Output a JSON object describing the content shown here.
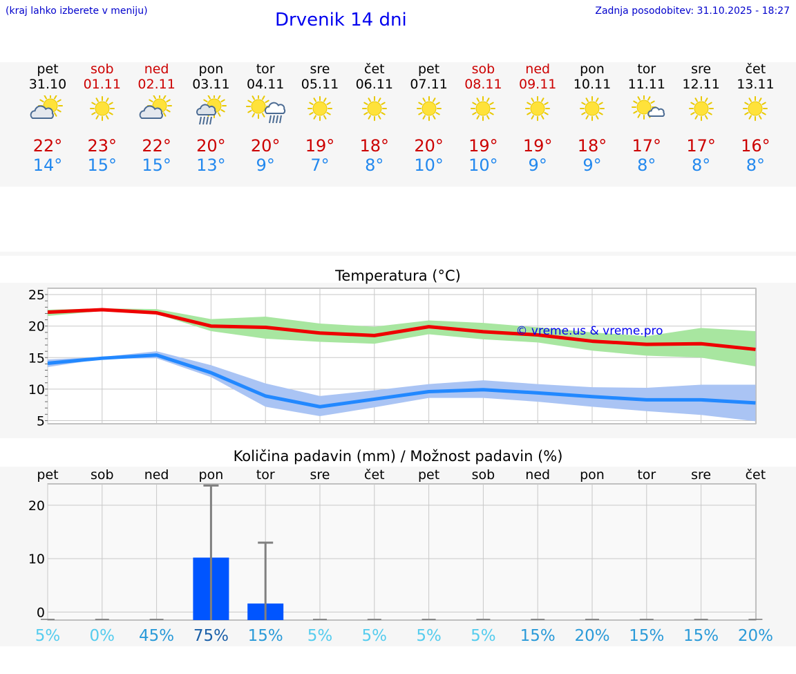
{
  "header": {
    "hint": "(kraj lahko izberete v meniju)",
    "title": "Drvenik 14 dni",
    "updated": "Zadnja posodobitev: 31.10.2025 - 18:27"
  },
  "days": [
    {
      "dow": "pet",
      "date": "31.10",
      "weekend": false,
      "icon": "sun-cloud-icon",
      "tmax": "22°",
      "tmin": "14°"
    },
    {
      "dow": "sob",
      "date": "01.11",
      "weekend": true,
      "icon": "sun-icon",
      "tmax": "23°",
      "tmin": "15°"
    },
    {
      "dow": "ned",
      "date": "02.11",
      "weekend": true,
      "icon": "sun-cloud-icon",
      "tmax": "22°",
      "tmin": "15°"
    },
    {
      "dow": "pon",
      "date": "03.11",
      "weekend": false,
      "icon": "sun-rain-icon",
      "tmax": "20°",
      "tmin": "13°"
    },
    {
      "dow": "tor",
      "date": "04.11",
      "weekend": false,
      "icon": "sun-cloud-rain-icon",
      "tmax": "20°",
      "tmin": "9°"
    },
    {
      "dow": "sre",
      "date": "05.11",
      "weekend": false,
      "icon": "sun-icon",
      "tmax": "19°",
      "tmin": "7°"
    },
    {
      "dow": "čet",
      "date": "06.11",
      "weekend": false,
      "icon": "sun-icon",
      "tmax": "18°",
      "tmin": "8°"
    },
    {
      "dow": "pet",
      "date": "07.11",
      "weekend": false,
      "icon": "sun-icon",
      "tmax": "20°",
      "tmin": "10°"
    },
    {
      "dow": "sob",
      "date": "08.11",
      "weekend": true,
      "icon": "sun-icon",
      "tmax": "19°",
      "tmin": "10°"
    },
    {
      "dow": "ned",
      "date": "09.11",
      "weekend": true,
      "icon": "sun-icon",
      "tmax": "19°",
      "tmin": "9°"
    },
    {
      "dow": "pon",
      "date": "10.11",
      "weekend": false,
      "icon": "sun-icon",
      "tmax": "18°",
      "tmin": "9°"
    },
    {
      "dow": "tor",
      "date": "11.11",
      "weekend": false,
      "icon": "sun-small-cloud-icon",
      "tmax": "17°",
      "tmin": "8°"
    },
    {
      "dow": "sre",
      "date": "12.11",
      "weekend": false,
      "icon": "sun-icon",
      "tmax": "17°",
      "tmin": "8°"
    },
    {
      "dow": "čet",
      "date": "13.11",
      "weekend": false,
      "icon": "sun-icon",
      "tmax": "16°",
      "tmin": "8°"
    }
  ],
  "colors": {
    "max_line": "#ee0000",
    "min_line": "#2288ff",
    "max_band": "#a8e6a0",
    "min_band": "#aac4f4",
    "bar": "#0055ff",
    "whisker": "#808080",
    "watermark": "#0000ee"
  },
  "chart_data": [
    {
      "type": "line",
      "title": "Temperatura (°C)",
      "ylim": [
        4.5,
        26
      ],
      "yticks": [
        5,
        10,
        15,
        20,
        25
      ],
      "ytick_labels": [
        "5",
        "10",
        "15",
        "20",
        "25"
      ],
      "watermark": "© vreme.us & vreme.pro",
      "x": [
        0,
        1,
        2,
        3,
        4,
        5,
        6,
        7,
        8,
        9,
        10,
        11,
        12,
        13
      ],
      "series": [
        {
          "name": "max",
          "values": [
            22.2,
            22.6,
            22.1,
            20.0,
            19.8,
            18.9,
            18.5,
            19.9,
            19.1,
            18.6,
            17.6,
            17.1,
            17.2,
            16.3
          ],
          "band_low": [
            21.6,
            22.4,
            21.9,
            19.2,
            18.0,
            17.5,
            17.2,
            18.7,
            17.9,
            17.4,
            16.1,
            15.3,
            15.0,
            13.6
          ],
          "band_high": [
            22.6,
            22.8,
            22.7,
            21.1,
            21.5,
            20.4,
            19.9,
            20.9,
            20.5,
            19.8,
            19.0,
            18.4,
            19.7,
            19.2
          ]
        },
        {
          "name": "min",
          "values": [
            14.1,
            14.9,
            15.4,
            12.6,
            8.9,
            7.2,
            8.4,
            9.6,
            9.9,
            9.4,
            8.8,
            8.3,
            8.3,
            7.8
          ],
          "band_low": [
            13.5,
            14.8,
            14.9,
            11.9,
            7.2,
            5.7,
            7.1,
            8.6,
            8.6,
            8.0,
            7.2,
            6.5,
            5.9,
            4.9
          ],
          "band_high": [
            14.7,
            15.1,
            16.0,
            13.8,
            10.9,
            8.9,
            9.8,
            10.8,
            11.4,
            10.8,
            10.3,
            10.2,
            10.7,
            10.7
          ]
        }
      ]
    },
    {
      "type": "bar",
      "title": "Količina padavin (mm) / Možnost padavin (%)",
      "categories": [
        "pet",
        "sob",
        "ned",
        "pon",
        "tor",
        "sre",
        "čet",
        "pet",
        "sob",
        "ned",
        "pon",
        "tor",
        "sre",
        "čet"
      ],
      "ylim": [
        -1.5,
        24
      ],
      "yticks": [
        0,
        10,
        20
      ],
      "ytick_labels": [
        "0",
        "10",
        "20"
      ],
      "values": [
        0,
        0,
        0,
        10.2,
        1.6,
        0,
        0,
        0,
        0,
        0,
        0,
        0,
        0,
        0
      ],
      "whisker_high": [
        0,
        0,
        0,
        23.7,
        13.0,
        0,
        0,
        0,
        0,
        0,
        0,
        0,
        0,
        0
      ],
      "probability_labels": [
        "5%",
        "0%",
        "45%",
        "75%",
        "15%",
        "5%",
        "5%",
        "5%",
        "5%",
        "15%",
        "20%",
        "15%",
        "15%",
        "20%"
      ],
      "probability_colors": [
        "#55ccee",
        "#55ccee",
        "#2a9ad8",
        "#1a5fa8",
        "#2a9ad8",
        "#55ccee",
        "#55ccee",
        "#55ccee",
        "#55ccee",
        "#2a9ad8",
        "#2a9ad8",
        "#2a9ad8",
        "#2a9ad8",
        "#2a9ad8"
      ]
    }
  ]
}
